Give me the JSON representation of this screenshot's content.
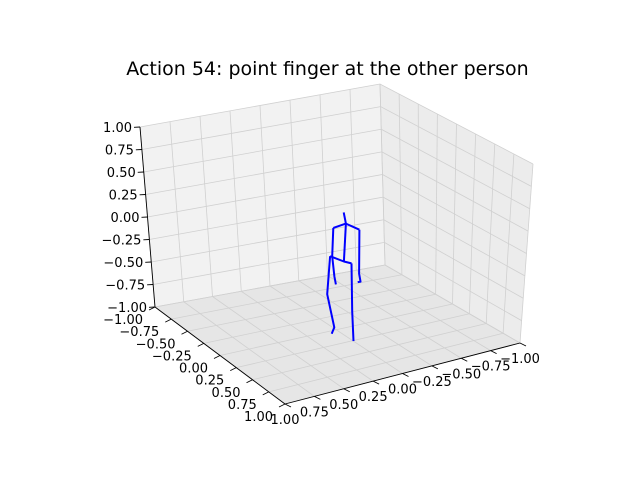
{
  "chart_data": {
    "type": "3d-line",
    "title": "Action 54: point finger at the other person",
    "xlim": [
      -1.0,
      1.0
    ],
    "ylim": [
      -1.0,
      1.0
    ],
    "zlim": [
      -1.0,
      1.0
    ],
    "x_ticks": [
      "1.00",
      "0.75",
      "0.50",
      "0.25",
      "0.00",
      "−0.25",
      "−0.50",
      "−0.75",
      "−1.00"
    ],
    "y_ticks": [
      "−1.00",
      "−0.75",
      "−0.50",
      "−0.25",
      "0.00",
      "0.25",
      "0.50",
      "0.75",
      "1.00"
    ],
    "z_ticks": [
      "1.00",
      "0.75",
      "0.50",
      "0.25",
      "0.00",
      "−0.25",
      "−0.50",
      "−0.75",
      "−1.00"
    ],
    "grid": true,
    "line_color": "#0000ff",
    "pane_color": "#f2f2f2",
    "grid_color": "#d0d0d0",
    "skeleton_segments": [
      {
        "name": "head-neck",
        "points": [
          [
            -0.12,
            0.0,
            0.2
          ],
          [
            -0.15,
            0.0,
            0.1
          ]
        ]
      },
      {
        "name": "spine",
        "points": [
          [
            -0.15,
            0.0,
            0.1
          ],
          [
            -0.12,
            0.0,
            -0.28
          ]
        ]
      },
      {
        "name": "shoulders",
        "points": [
          [
            0.03,
            0.0,
            0.0
          ],
          [
            -0.15,
            0.0,
            0.1
          ],
          [
            -0.34,
            0.0,
            0.1
          ]
        ]
      },
      {
        "name": "left-arm",
        "points": [
          [
            0.03,
            0.0,
            0.0
          ],
          [
            0.05,
            0.0,
            -0.29
          ],
          [
            0.02,
            0.0,
            -0.48
          ],
          [
            0.0,
            0.0,
            -0.55
          ]
        ]
      },
      {
        "name": "right-arm",
        "points": [
          [
            -0.34,
            0.0,
            0.1
          ],
          [
            -0.34,
            0.0,
            -0.32
          ],
          [
            -0.36,
            0.0,
            -0.39
          ],
          [
            -0.32,
            0.0,
            -0.41
          ]
        ]
      },
      {
        "name": "hips",
        "points": [
          [
            0.08,
            0.0,
            -0.3
          ],
          [
            -0.12,
            0.0,
            -0.28
          ],
          [
            -0.23,
            0.0,
            -0.26
          ]
        ]
      },
      {
        "name": "left-leg",
        "points": [
          [
            -0.23,
            0.0,
            -0.26
          ],
          [
            -0.24,
            0.0,
            -0.72
          ],
          [
            -0.26,
            0.0,
            -1.0
          ]
        ]
      },
      {
        "name": "right-leg",
        "points": [
          [
            0.08,
            0.0,
            -0.3
          ],
          [
            0.13,
            0.0,
            -0.7
          ],
          [
            0.03,
            0.0,
            -0.99
          ],
          [
            0.07,
            0.0,
            -1.07
          ]
        ]
      }
    ]
  }
}
